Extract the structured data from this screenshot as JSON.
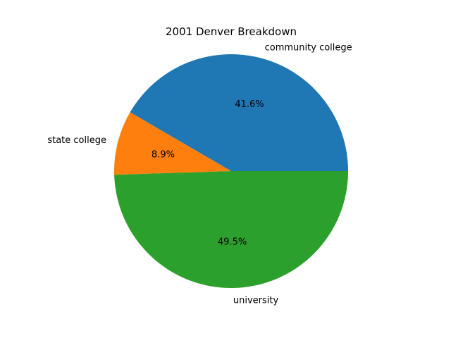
{
  "chart_data": {
    "type": "pie",
    "title": "2001 Denver Breakdown",
    "slices": [
      {
        "label": "community college",
        "value": 41.6,
        "pct_label": "41.6%",
        "color": "#1f77b4"
      },
      {
        "label": "state college",
        "value": 8.9,
        "pct_label": "8.9%",
        "color": "#ff7f0e"
      },
      {
        "label": "university",
        "value": 49.5,
        "pct_label": "49.5%",
        "color": "#2ca02c"
      }
    ],
    "start_angle_deg": 0,
    "direction": "counterclockwise"
  }
}
